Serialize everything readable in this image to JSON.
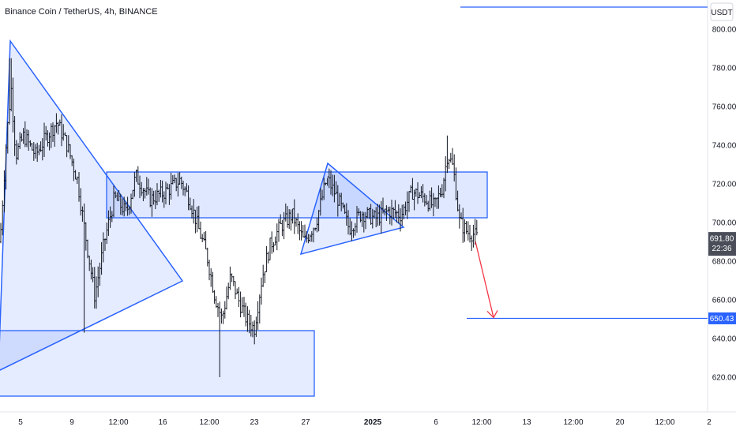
{
  "header": {
    "symbol_title": "Binance Coin / TetherUS, 4h, BINANCE"
  },
  "colors": {
    "pattern_stroke": "#2962ff",
    "pattern_fill": "#2962ff",
    "candle": "#131722",
    "arrow": "#f23645",
    "axis_text": "#131722",
    "badge_dark": "#4a4e59",
    "badge_blue": "#2962ff"
  },
  "chart_data": {
    "type": "candlestick",
    "title": "Binance Coin / TetherUS, 4h, BINANCE",
    "currency_label": "USDT",
    "ylim": [
      607,
      816
    ],
    "y_ticks": [
      "800.00",
      "780.00",
      "760.00",
      "740.00",
      "720.00",
      "700.00",
      "680.00",
      "660.00",
      "640.00",
      "620.00"
    ],
    "x_ticks": [
      "5",
      "9",
      "12:00",
      "16",
      "12:00",
      "23",
      "27",
      "2025",
      "6",
      "12:00",
      "13",
      "12:00",
      "20",
      "12:00",
      "2"
    ],
    "price_badge": {
      "value": "691.80",
      "sub": "22:36"
    },
    "target_badge": {
      "value": "650.43"
    },
    "overview": [
      {
        "x": 0,
        "y": 690
      },
      {
        "x": 8,
        "y": 742
      },
      {
        "x": 14,
        "y": 770
      },
      {
        "x": 20,
        "y": 735
      },
      {
        "x": 30,
        "y": 745
      },
      {
        "x": 45,
        "y": 735
      },
      {
        "x": 60,
        "y": 745
      },
      {
        "x": 72,
        "y": 752
      },
      {
        "x": 85,
        "y": 740
      },
      {
        "x": 98,
        "y": 722
      },
      {
        "x": 108,
        "y": 694
      },
      {
        "x": 120,
        "y": 662
      },
      {
        "x": 132,
        "y": 690
      },
      {
        "x": 145,
        "y": 713
      },
      {
        "x": 160,
        "y": 705
      },
      {
        "x": 172,
        "y": 724
      },
      {
        "x": 190,
        "y": 712
      },
      {
        "x": 210,
        "y": 716
      },
      {
        "x": 228,
        "y": 722
      },
      {
        "x": 240,
        "y": 712
      },
      {
        "x": 252,
        "y": 696
      },
      {
        "x": 262,
        "y": 683
      },
      {
        "x": 272,
        "y": 662
      },
      {
        "x": 281,
        "y": 650
      },
      {
        "x": 292,
        "y": 672
      },
      {
        "x": 302,
        "y": 660
      },
      {
        "x": 312,
        "y": 650
      },
      {
        "x": 322,
        "y": 645
      },
      {
        "x": 332,
        "y": 672
      },
      {
        "x": 342,
        "y": 688
      },
      {
        "x": 355,
        "y": 698
      },
      {
        "x": 370,
        "y": 704
      },
      {
        "x": 385,
        "y": 690
      },
      {
        "x": 400,
        "y": 700
      },
      {
        "x": 414,
        "y": 723
      },
      {
        "x": 428,
        "y": 712
      },
      {
        "x": 442,
        "y": 697
      },
      {
        "x": 458,
        "y": 705
      },
      {
        "x": 475,
        "y": 702
      },
      {
        "x": 492,
        "y": 706
      },
      {
        "x": 508,
        "y": 704
      },
      {
        "x": 522,
        "y": 716
      },
      {
        "x": 537,
        "y": 713
      },
      {
        "x": 550,
        "y": 708
      },
      {
        "x": 560,
        "y": 718
      },
      {
        "x": 567,
        "y": 736
      },
      {
        "x": 574,
        "y": 728
      },
      {
        "x": 582,
        "y": 700
      },
      {
        "x": 592,
        "y": 695
      },
      {
        "x": 600,
        "y": 694
      },
      {
        "x": 605,
        "y": 691.8
      }
    ]
  }
}
